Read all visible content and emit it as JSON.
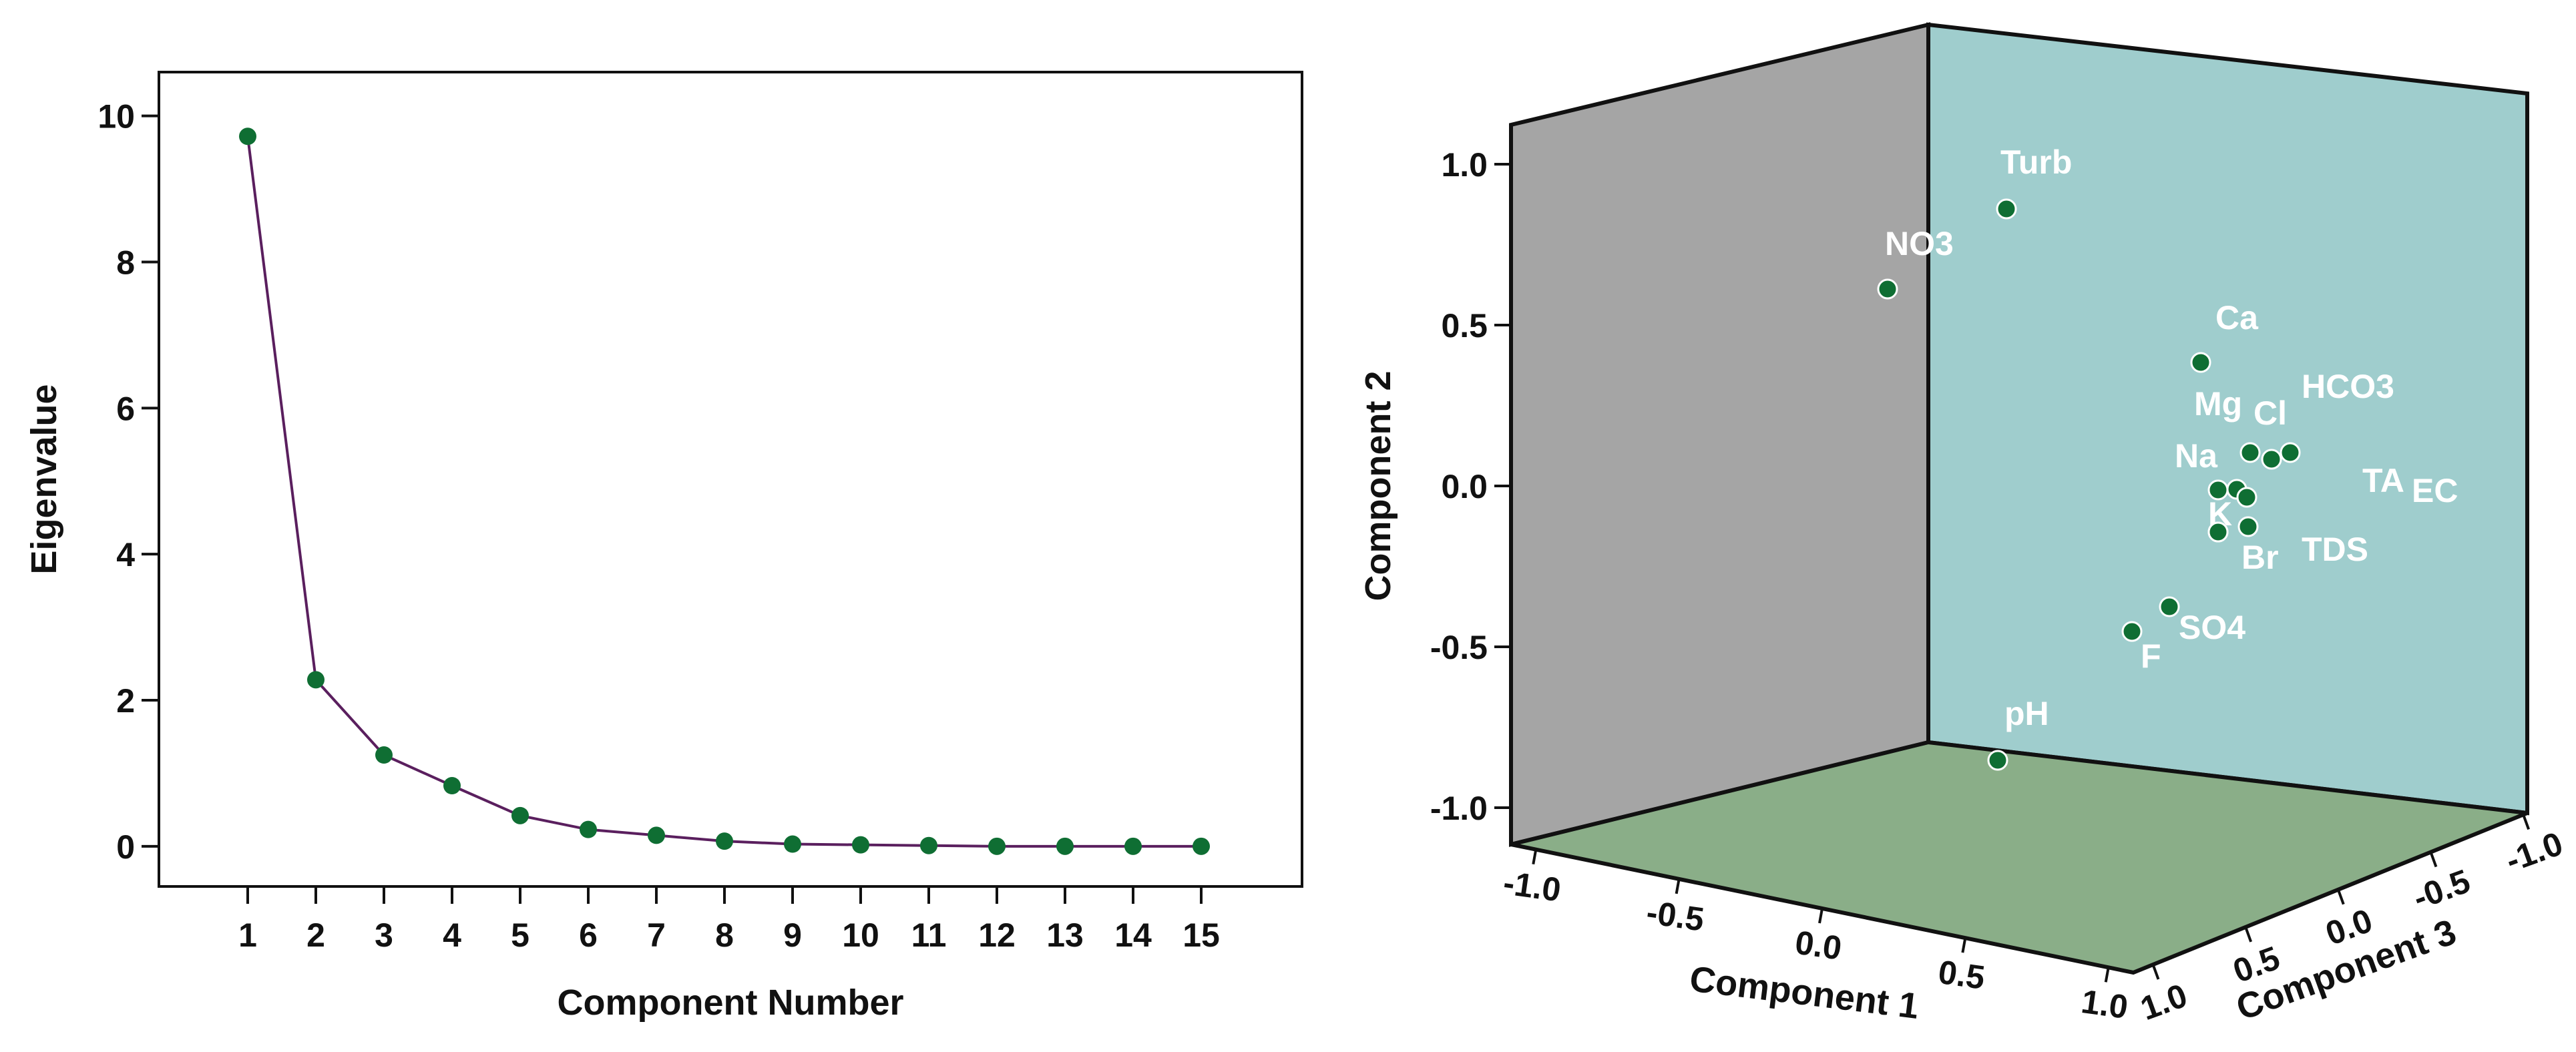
{
  "colors": {
    "point_fill": "#0f6e33",
    "point_stroke": "#ffffff",
    "line": "#5a1f5e",
    "axis": "#111111",
    "left_wall": "#a5a5a5",
    "back_wall": "#9fcdcd",
    "floor": "#8aae88",
    "label_text": "#ffffff"
  },
  "chart_data": [
    {
      "type": "line",
      "title": "",
      "xlabel": "Component Number",
      "ylabel": "Eigenvalue",
      "x": [
        1,
        2,
        3,
        4,
        5,
        6,
        7,
        8,
        9,
        10,
        11,
        12,
        13,
        14,
        15
      ],
      "values": [
        9.72,
        2.28,
        1.25,
        0.83,
        0.42,
        0.23,
        0.15,
        0.07,
        0.03,
        0.02,
        0.01,
        0.0,
        0.0,
        0.0,
        0.0
      ],
      "x_ticks": [
        "1",
        "2",
        "3",
        "4",
        "5",
        "6",
        "7",
        "8",
        "9",
        "10",
        "11",
        "12",
        "13",
        "14",
        "15"
      ],
      "y_ticks": [
        "0",
        "2",
        "4",
        "6",
        "8",
        "10"
      ],
      "ylim": [
        -0.55,
        10.6
      ],
      "grid": false,
      "legend": "none"
    },
    {
      "type": "scatter",
      "title": "",
      "xlabel": "Component 1",
      "ylabel": "Component 2",
      "zlabel": "Component 3",
      "projection": "3d",
      "component2_ticks": [
        "-1.0",
        "-0.5",
        "0.0",
        "0.5",
        "1.0"
      ],
      "component1_ticks": [
        "-1.0",
        "-0.5",
        "0.0",
        "0.5",
        "1.0"
      ],
      "component3_ticks": [
        "1.0",
        "0.5",
        "0.0",
        "-0.5",
        "-1.0"
      ],
      "points": [
        {
          "label": "Turb",
          "comp2": 0.85
        },
        {
          "label": "NO3",
          "comp2": 0.6
        },
        {
          "label": "Ca",
          "comp2": 0.38
        },
        {
          "label": "HCO3",
          "comp2": 0.08
        },
        {
          "label": "Mg",
          "comp2": 0.1
        },
        {
          "label": "Cl",
          "comp2": 0.1
        },
        {
          "label": "Na",
          "comp2": 0.01
        },
        {
          "label": "TA",
          "comp2": -0.03
        },
        {
          "label": "EC",
          "comp2": -0.04
        },
        {
          "label": "K",
          "comp2": -0.12
        },
        {
          "label": "TDS",
          "comp2": -0.12
        },
        {
          "label": "Br",
          "comp2": -0.14
        },
        {
          "label": "SO4",
          "comp2": -0.37
        },
        {
          "label": "F",
          "comp2": -0.45
        },
        {
          "label": "pH",
          "comp2": -0.85
        }
      ]
    }
  ]
}
